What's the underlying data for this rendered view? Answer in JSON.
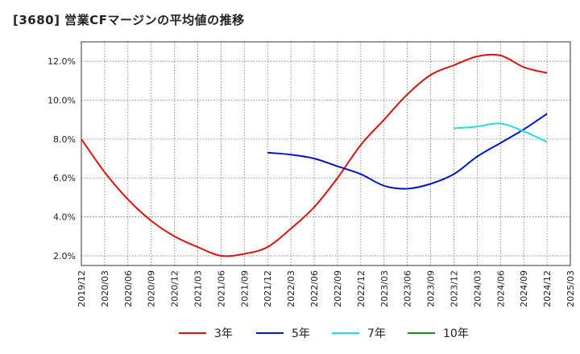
{
  "title": "[3680]  営業CFマージンの平均値の推移",
  "chart_data": {
    "type": "line",
    "x_labels": [
      "2019/12",
      "2020/03",
      "2020/06",
      "2020/09",
      "2020/12",
      "2021/03",
      "2021/06",
      "2021/09",
      "2021/12",
      "2022/03",
      "2022/06",
      "2022/09",
      "2022/12",
      "2023/03",
      "2023/06",
      "2023/09",
      "2023/12",
      "2024/03",
      "2024/06",
      "2024/09",
      "2024/12",
      "2025/03"
    ],
    "y_ticks": [
      "2.0%",
      "4.0%",
      "6.0%",
      "8.0%",
      "10.0%",
      "12.0%"
    ],
    "ylim": [
      1.5,
      13.0
    ],
    "grid": true,
    "legend_position": "bottom",
    "series": [
      {
        "name": "3年",
        "color": "#dd1111",
        "points": [
          [
            "2019/12",
            8.0
          ],
          [
            "2020/03",
            6.3
          ],
          [
            "2020/06",
            4.9
          ],
          [
            "2020/09",
            3.8
          ],
          [
            "2020/12",
            3.0
          ],
          [
            "2021/03",
            2.45
          ],
          [
            "2021/06",
            2.0
          ],
          [
            "2021/09",
            2.1
          ],
          [
            "2021/12",
            2.45
          ],
          [
            "2022/03",
            3.4
          ],
          [
            "2022/06",
            4.5
          ],
          [
            "2022/09",
            6.0
          ],
          [
            "2022/12",
            7.7
          ],
          [
            "2023/03",
            9.0
          ],
          [
            "2023/06",
            10.3
          ],
          [
            "2023/09",
            11.3
          ],
          [
            "2023/12",
            11.8
          ],
          [
            "2024/03",
            12.25
          ],
          [
            "2024/06",
            12.3
          ],
          [
            "2024/09",
            11.7
          ],
          [
            "2024/12",
            11.4
          ]
        ]
      },
      {
        "name": "5年",
        "color": "#0011cc",
        "points": [
          [
            "2021/12",
            7.3
          ],
          [
            "2022/03",
            7.2
          ],
          [
            "2022/06",
            7.0
          ],
          [
            "2022/09",
            6.6
          ],
          [
            "2022/12",
            6.2
          ],
          [
            "2023/03",
            5.6
          ],
          [
            "2023/06",
            5.45
          ],
          [
            "2023/09",
            5.7
          ],
          [
            "2023/12",
            6.2
          ],
          [
            "2024/03",
            7.1
          ],
          [
            "2024/06",
            7.8
          ],
          [
            "2024/09",
            8.5
          ],
          [
            "2024/12",
            9.3
          ]
        ]
      },
      {
        "name": "7年",
        "color": "#22dddd",
        "points": [
          [
            "2023/12",
            8.55
          ],
          [
            "2024/03",
            8.65
          ],
          [
            "2024/06",
            8.8
          ],
          [
            "2024/09",
            8.4
          ],
          [
            "2024/12",
            7.85
          ]
        ]
      },
      {
        "name": "10年",
        "color": "#228822",
        "points": []
      }
    ]
  }
}
